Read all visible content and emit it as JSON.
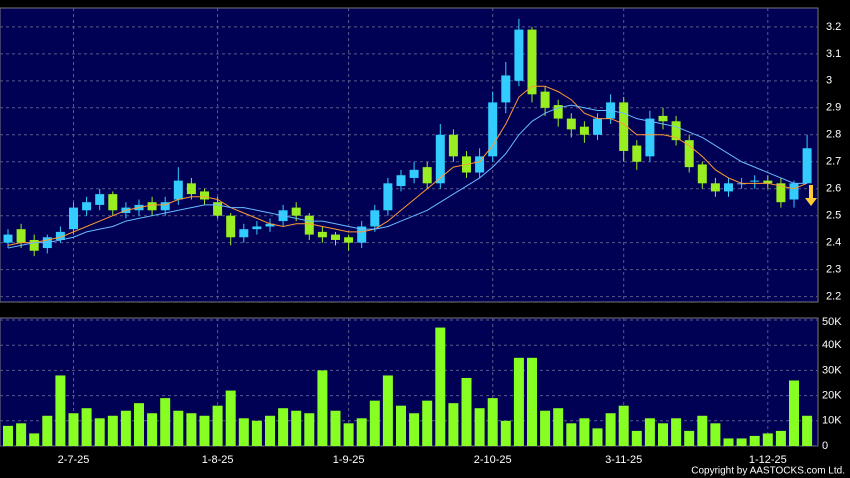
{
  "chart_data": {
    "type": "candlestick",
    "categories": [
      null,
      null,
      null,
      null,
      null,
      "2-7-25",
      null,
      null,
      null,
      null,
      null,
      null,
      null,
      null,
      null,
      null,
      "1-8-25",
      null,
      null,
      null,
      null,
      null,
      null,
      null,
      null,
      null,
      "1-9-25",
      null,
      null,
      null,
      null,
      null,
      null,
      null,
      null,
      null,
      null,
      "2-10-25",
      null,
      null,
      null,
      null,
      null,
      null,
      null,
      null,
      null,
      "3-11-25",
      null,
      null,
      null,
      null,
      null,
      null,
      null,
      null,
      null,
      null,
      "1-12-25",
      null,
      null,
      null
    ],
    "open": [
      2.4,
      2.45,
      2.41,
      2.38,
      2.41,
      2.45,
      2.52,
      2.54,
      2.58,
      2.51,
      2.52,
      2.55,
      2.52,
      2.56,
      2.62,
      2.59,
      2.55,
      2.5,
      2.42,
      2.45,
      2.46,
      2.48,
      2.53,
      2.5,
      2.44,
      2.43,
      2.42,
      2.4,
      2.46,
      2.52,
      2.61,
      2.64,
      2.68,
      2.62,
      2.8,
      2.72,
      2.66,
      2.72,
      2.92,
      3.0,
      3.19,
      2.96,
      2.91,
      2.86,
      2.83,
      2.8,
      2.86,
      2.92,
      2.76,
      2.72,
      2.87,
      2.85,
      2.78,
      2.69,
      2.62,
      2.59,
      2.62,
      2.63,
      2.63,
      2.62,
      2.56,
      2.62
    ],
    "high": [
      2.45,
      2.47,
      2.43,
      2.43,
      2.46,
      2.55,
      2.57,
      2.6,
      2.59,
      2.55,
      2.56,
      2.57,
      2.57,
      2.68,
      2.64,
      2.6,
      2.57,
      2.51,
      2.47,
      2.48,
      2.49,
      2.54,
      2.55,
      2.51,
      2.46,
      2.44,
      2.43,
      2.48,
      2.54,
      2.64,
      2.67,
      2.7,
      2.7,
      2.84,
      2.82,
      2.74,
      2.75,
      2.96,
      3.07,
      3.23,
      3.2,
      2.98,
      2.93,
      2.88,
      2.85,
      2.88,
      2.95,
      2.94,
      2.78,
      2.89,
      2.9,
      2.87,
      2.8,
      2.7,
      2.64,
      2.64,
      2.64,
      2.65,
      2.65,
      2.64,
      2.63,
      2.8
    ],
    "low": [
      2.38,
      2.38,
      2.35,
      2.36,
      2.4,
      2.43,
      2.5,
      2.52,
      2.5,
      2.49,
      2.5,
      2.5,
      2.5,
      2.54,
      2.56,
      2.54,
      2.49,
      2.39,
      2.4,
      2.43,
      2.44,
      2.46,
      2.48,
      2.41,
      2.4,
      2.39,
      2.37,
      2.38,
      2.44,
      2.5,
      2.59,
      2.62,
      2.6,
      2.6,
      2.7,
      2.64,
      2.64,
      2.7,
      2.88,
      2.98,
      2.92,
      2.87,
      2.83,
      2.79,
      2.77,
      2.78,
      2.84,
      2.7,
      2.67,
      2.7,
      2.82,
      2.76,
      2.66,
      2.6,
      2.57,
      2.57,
      2.6,
      2.6,
      2.6,
      2.53,
      2.53,
      2.62
    ],
    "close": [
      2.43,
      2.4,
      2.37,
      2.42,
      2.44,
      2.53,
      2.55,
      2.58,
      2.52,
      2.53,
      2.54,
      2.52,
      2.55,
      2.63,
      2.58,
      2.56,
      2.5,
      2.42,
      2.45,
      2.46,
      2.47,
      2.52,
      2.5,
      2.43,
      2.42,
      2.41,
      2.4,
      2.46,
      2.52,
      2.62,
      2.65,
      2.67,
      2.62,
      2.8,
      2.72,
      2.66,
      2.72,
      2.92,
      3.02,
      3.19,
      2.95,
      2.9,
      2.86,
      2.82,
      2.8,
      2.86,
      2.92,
      2.74,
      2.7,
      2.86,
      2.85,
      2.78,
      2.68,
      2.62,
      2.59,
      2.62,
      2.62,
      2.63,
      2.62,
      2.55,
      2.62,
      2.75
    ],
    "up_color": "#33ccff",
    "down_color": "#99ee22",
    "ylim": [
      2.18,
      3.27
    ],
    "yticks": [
      2.2,
      2.3,
      2.4,
      2.5,
      2.6,
      2.7,
      2.8,
      2.9,
      3,
      3.1,
      3.2
    ],
    "grid": true,
    "series": [
      {
        "color": "#ff9933",
        "values": [
          2.39,
          2.4,
          2.4,
          2.41,
          2.42,
          2.44,
          2.46,
          2.48,
          2.5,
          2.52,
          2.53,
          2.54,
          2.54,
          2.56,
          2.57,
          2.57,
          2.56,
          2.53,
          2.51,
          2.49,
          2.47,
          2.46,
          2.47,
          2.47,
          2.46,
          2.45,
          2.44,
          2.44,
          2.45,
          2.48,
          2.52,
          2.56,
          2.6,
          2.64,
          2.68,
          2.69,
          2.7,
          2.76,
          2.84,
          2.94,
          2.98,
          2.98,
          2.96,
          2.93,
          2.88,
          2.86,
          2.86,
          2.84,
          2.8,
          2.8,
          2.8,
          2.79,
          2.76,
          2.72,
          2.67,
          2.64,
          2.62,
          2.62,
          2.62,
          2.61,
          2.6,
          2.62
        ]
      },
      {
        "color": "#66bbff",
        "values": [
          2.38,
          2.39,
          2.4,
          2.4,
          2.41,
          2.42,
          2.44,
          2.45,
          2.46,
          2.48,
          2.49,
          2.5,
          2.51,
          2.52,
          2.53,
          2.54,
          2.54,
          2.53,
          2.53,
          2.52,
          2.51,
          2.5,
          2.49,
          2.48,
          2.48,
          2.47,
          2.46,
          2.45,
          2.45,
          2.46,
          2.48,
          2.5,
          2.52,
          2.55,
          2.58,
          2.61,
          2.64,
          2.68,
          2.73,
          2.8,
          2.85,
          2.88,
          2.9,
          2.91,
          2.9,
          2.89,
          2.89,
          2.88,
          2.86,
          2.85,
          2.84,
          2.83,
          2.81,
          2.79,
          2.76,
          2.73,
          2.7,
          2.68,
          2.66,
          2.64,
          2.62,
          2.62
        ]
      }
    ],
    "volume": {
      "color": "#88ff22",
      "values": [
        8000,
        9000,
        5000,
        12000,
        28000,
        13000,
        15000,
        11000,
        12000,
        14000,
        17000,
        13000,
        19000,
        14000,
        13000,
        12000,
        16000,
        22000,
        11000,
        10000,
        12000,
        15000,
        14000,
        13000,
        30000,
        14000,
        9000,
        11000,
        18000,
        28000,
        16000,
        13000,
        18000,
        47000,
        17000,
        27000,
        15000,
        19000,
        10000,
        35000,
        35000,
        14000,
        15000,
        9000,
        11000,
        7000,
        13000,
        16000,
        6000,
        11000,
        9000,
        11000,
        6000,
        12000,
        9000,
        3000,
        3000,
        4000,
        5000,
        6000,
        26000,
        12000
      ],
      "ylim": [
        0,
        50800
      ],
      "yticks": [
        0,
        {
          "value": 10000,
          "label": "10K"
        },
        {
          "value": 20000,
          "label": "20K"
        },
        {
          "value": 30000,
          "label": "30K"
        },
        {
          "value": 40000,
          "label": "40K"
        },
        {
          "value": 50000,
          "label": "50K"
        }
      ]
    },
    "copyright": "Copyright by AASTOCKS.com Ltd."
  }
}
